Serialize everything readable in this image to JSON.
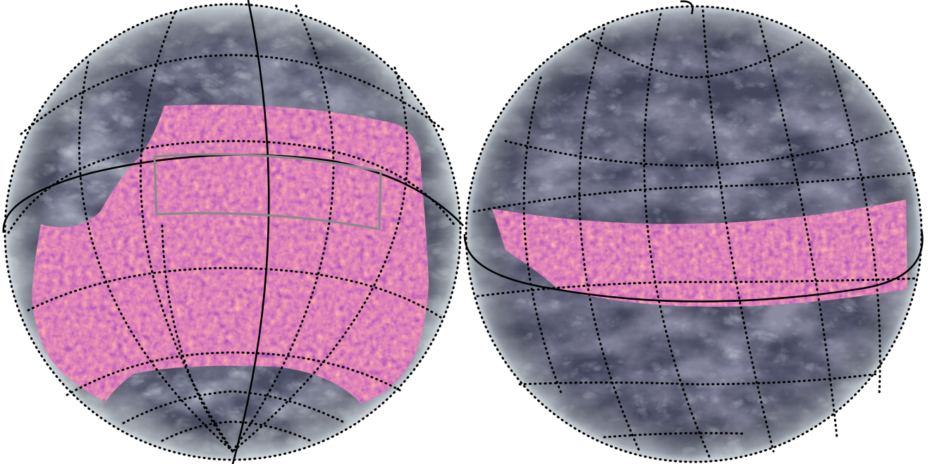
{
  "figure": {
    "hemispheres": [
      {
        "id": "left",
        "background_map": "grey-dust-texture",
        "overlay": "magma-noise-patch",
        "graticule": "dotted",
        "highlight_box": true
      },
      {
        "id": "right",
        "background_map": "grey-dust-texture",
        "overlay": "magma-noise-band",
        "graticule": "dotted",
        "highlight_box": false
      }
    ],
    "colors": {
      "background_dark": "#3c3c55",
      "background_light": "#b4c2c4",
      "magma_low": "#3b0f70",
      "magma_mid": "#c7407a",
      "magma_high": "#fcc473",
      "graticule": "#000000",
      "box": "#8a8a8a"
    }
  }
}
